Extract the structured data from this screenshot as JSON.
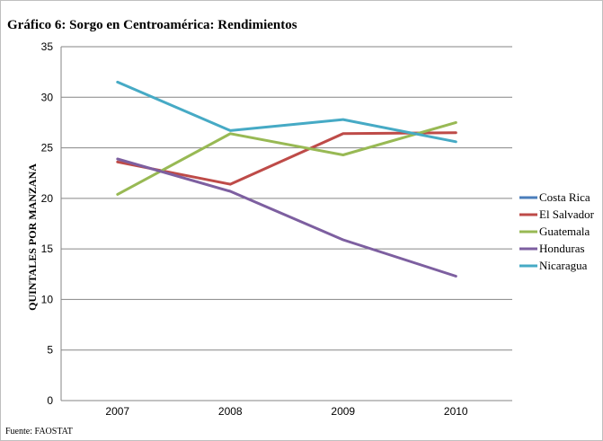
{
  "title": "Gráfico 6: Sorgo en Centroamérica: Rendimientos",
  "source": "Fuente: FAOSTAT",
  "chart_data": {
    "type": "line",
    "title": "Gráfico 6: Sorgo en Centroamérica: Rendimientos",
    "xlabel": "",
    "ylabel": "QUINTALES POR MANZANA",
    "categories": [
      "2007",
      "2008",
      "2009",
      "2010"
    ],
    "ylim": [
      0,
      35
    ],
    "yticks": [
      0,
      5,
      10,
      15,
      20,
      25,
      30,
      35
    ],
    "grid": "horizontal",
    "legend_position": "right",
    "series": [
      {
        "name": "Costa Rica",
        "color": "#4a7ebb",
        "values": [
          null,
          null,
          null,
          null
        ]
      },
      {
        "name": "El Salvador",
        "color": "#be4b48",
        "values": [
          23.6,
          21.4,
          26.4,
          26.5
        ]
      },
      {
        "name": "Guatemala",
        "color": "#98b954",
        "values": [
          20.4,
          26.4,
          24.3,
          27.5
        ]
      },
      {
        "name": "Honduras",
        "color": "#7d5fa0",
        "values": [
          23.9,
          20.7,
          15.9,
          12.3
        ]
      },
      {
        "name": "Nicaragua",
        "color": "#46aac5",
        "values": [
          31.5,
          26.7,
          27.8,
          25.6
        ]
      }
    ]
  }
}
